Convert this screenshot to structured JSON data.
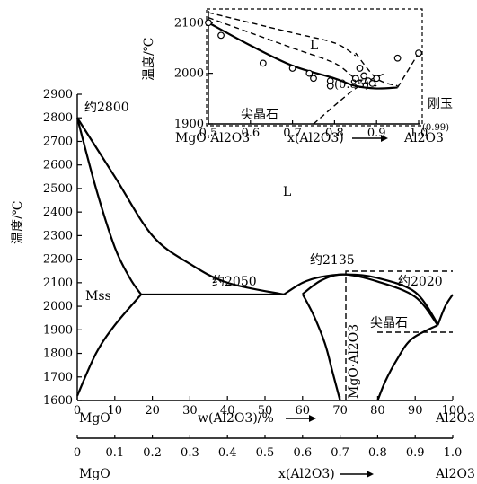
{
  "chart_data": [
    {
      "type": "line",
      "title": "",
      "ylabel": "温度/℃",
      "ylim": [
        1600,
        2900
      ],
      "yticks": [
        1600,
        1700,
        1800,
        1900,
        2000,
        2100,
        2200,
        2300,
        2400,
        2500,
        2600,
        2700,
        2800,
        2900
      ],
      "xlim": [
        0,
        100
      ],
      "xticks": [
        0,
        10,
        20,
        30,
        40,
        50,
        60,
        70,
        80,
        90,
        100
      ],
      "x_axis_label_wt": "w(Al2O3)/%",
      "x_left_end_label": "MgO",
      "x_right_end_label": "Al2O3",
      "second_axis_ticks": [
        "0",
        "0.1",
        "0.2",
        "0.3",
        "0.4",
        "0.5",
        "0.6",
        "0.7",
        "0.8",
        "0.9",
        "1.0"
      ],
      "second_axis_label": "x(Al2O3)",
      "second_axis_left_label": "MgO",
      "second_axis_right_label": "Al2O3",
      "region_labels": {
        "liquid": "L",
        "mss": "Mss",
        "spinel": "尖晶石",
        "spinel_formula": "MgO·Al2O3"
      },
      "annotations": {
        "mgo_melt": "约2800",
        "eutectic_left": "约2050",
        "spinel_melt": "约2135",
        "eutectic_right": "约2020"
      },
      "series": [
        {
          "values": [
            [
              0,
              2800
            ],
            [
              10,
              2550
            ],
            [
              20,
              2300
            ],
            [
              30,
              2180
            ],
            [
              40,
              2100
            ],
            [
              55,
              2050
            ]
          ]
        },
        {
          "values": [
            [
              0,
              2800
            ],
            [
              5,
              2500
            ],
            [
              10,
              2250
            ],
            [
              14,
              2120
            ],
            [
              17,
              2050
            ]
          ]
        },
        {
          "values": [
            [
              17,
              2050
            ],
            [
              55,
              2050
            ]
          ]
        },
        {
          "values": [
            [
              0,
              1620
            ],
            [
              5,
              1800
            ],
            [
              10,
              1920
            ],
            [
              17,
              2050
            ]
          ]
        },
        {
          "values": [
            [
              55,
              2050
            ],
            [
              60,
              2100
            ],
            [
              65,
              2125
            ],
            [
              72,
              2135
            ],
            [
              80,
              2120
            ],
            [
              90,
              2060
            ],
            [
              96,
              1925
            ]
          ]
        },
        {
          "values": [
            [
              60,
              2052
            ],
            [
              65,
              2110
            ],
            [
              71,
              2135
            ],
            [
              80,
              2105
            ],
            [
              90,
              2040
            ],
            [
              96,
              1920
            ]
          ]
        },
        {
          "values": [
            [
              60,
              2052
            ],
            [
              63,
              1960
            ],
            [
              66,
              1840
            ],
            [
              68,
              1720
            ],
            [
              70,
              1600
            ]
          ]
        },
        {
          "values": [
            [
              80,
              1600
            ],
            [
              82,
              1680
            ],
            [
              85,
              1770
            ],
            [
              89,
              1860
            ],
            [
              96,
              1920
            ]
          ]
        },
        {
          "values": [
            [
              96,
              1920
            ],
            [
              98,
              2000
            ],
            [
              100,
              2050
            ]
          ]
        }
      ]
    },
    {
      "type": "line",
      "title": "",
      "ylabel": "温度/℃",
      "ylim": [
        1900,
        2120
      ],
      "yticks": [
        1900,
        2000,
        2100
      ],
      "xlim": [
        0.5,
        1.0
      ],
      "xticks": [
        "0.5",
        "0.6",
        "0.7",
        "0.8",
        "0.9",
        "1.0"
      ],
      "x_axis_label": "x(Al2O3)",
      "x_left_end_label": "MgO·Al2O3",
      "x_right_end_label": "Al2O3",
      "region_labels": {
        "liquid": "L",
        "spinel": "尖晶石",
        "corundum": "刚玉"
      },
      "annotations": {
        "eutectic_x": "(0.85)",
        "limit_x": "(0.99)"
      },
      "series": [
        {
          "values": [
            [
              0.5,
              2100
            ],
            [
              0.6,
              2055
            ],
            [
              0.7,
              2015
            ],
            [
              0.8,
              1990
            ],
            [
              0.85,
              1975
            ],
            [
              0.9,
              1970
            ],
            [
              0.95,
              1972
            ]
          ]
        },
        {
          "values": [
            [
              0.5,
              2120
            ],
            [
              0.6,
              2100
            ],
            [
              0.7,
              2080
            ],
            [
              0.8,
              2060
            ],
            [
              0.85,
              2035
            ]
          ]
        },
        {
          "values": [
            [
              0.5,
              2110
            ],
            [
              0.6,
              2080
            ],
            [
              0.7,
              2050
            ],
            [
              0.8,
              2020
            ],
            [
              0.85,
              1990
            ],
            [
              0.9,
              1975
            ]
          ]
        },
        {
          "values": [
            [
              0.95,
              1972
            ],
            [
              1.0,
              2040
            ]
          ]
        },
        {
          "values": [
            [
              0.85,
              2040
            ],
            [
              0.9,
              1990
            ],
            [
              0.95,
              1975
            ]
          ]
        },
        {
          "values": [
            [
              0.75,
              1900
            ],
            [
              0.85,
              1970
            ],
            [
              0.92,
              2000
            ]
          ]
        }
      ],
      "points": [
        [
          0.5,
          2100
        ],
        [
          0.53,
          2075
        ],
        [
          0.63,
          2020
        ],
        [
          0.7,
          2010
        ],
        [
          0.74,
          2000
        ],
        [
          0.75,
          1990
        ],
        [
          0.79,
          1985
        ],
        [
          0.79,
          1975
        ],
        [
          0.85,
          1990
        ],
        [
          0.86,
          2010
        ],
        [
          0.87,
          1995
        ],
        [
          0.88,
          1985
        ],
        [
          0.89,
          1980
        ],
        [
          0.9,
          1990
        ],
        [
          0.95,
          2030
        ],
        [
          1.0,
          2040
        ]
      ]
    }
  ]
}
